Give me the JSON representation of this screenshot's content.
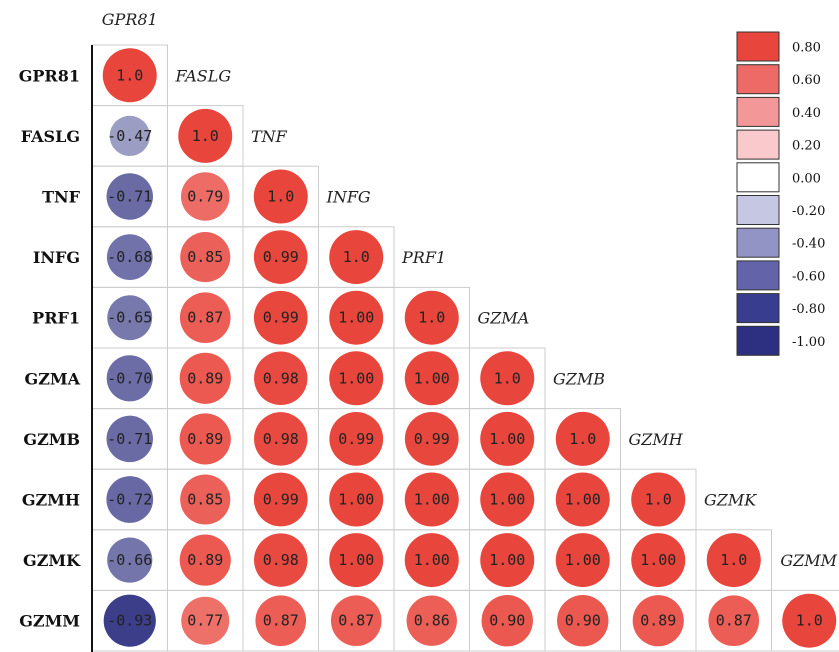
{
  "chart_data": {
    "type": "heatmap",
    "variables": [
      "GPR81",
      "FASLG",
      "TNF",
      "INFG",
      "PRF1",
      "GZMA",
      "GZMB",
      "GZMH",
      "GZMK",
      "GZMM"
    ],
    "matrix_lower": [
      [
        "1.0"
      ],
      [
        "-0.47",
        "1.0"
      ],
      [
        "-0.71",
        "0.79",
        "1.0"
      ],
      [
        "-0.68",
        "0.85",
        "0.99",
        "1.0"
      ],
      [
        "-0.65",
        "0.87",
        "0.99",
        "1.00",
        "1.0"
      ],
      [
        "-0.70",
        "0.89",
        "0.98",
        "1.00",
        "1.00",
        "1.0"
      ],
      [
        "-0.71",
        "0.89",
        "0.98",
        "0.99",
        "0.99",
        "1.00",
        "1.0"
      ],
      [
        "-0.72",
        "0.85",
        "0.99",
        "1.00",
        "1.00",
        "1.00",
        "1.00",
        "1.0"
      ],
      [
        "-0.66",
        "0.89",
        "0.98",
        "1.00",
        "1.00",
        "1.00",
        "1.00",
        "1.00",
        "1.0"
      ],
      [
        "-0.93",
        "0.77",
        "0.87",
        "0.87",
        "0.86",
        "0.90",
        "0.90",
        "0.89",
        "0.87",
        "1.0"
      ]
    ],
    "legend": {
      "placement": "top-right",
      "items": [
        {
          "label": "0.80",
          "color": "#e8453c"
        },
        {
          "label": "0.60",
          "color": "#ee6a66"
        },
        {
          "label": "0.40",
          "color": "#f49799"
        },
        {
          "label": "0.20",
          "color": "#f9c9cc"
        },
        {
          "label": "0.00",
          "color": "#ffffff"
        },
        {
          "label": "-0.20",
          "color": "#c6c7e2"
        },
        {
          "label": "-0.40",
          "color": "#9394c6"
        },
        {
          "label": "-0.60",
          "color": "#6263a8"
        },
        {
          "label": "-0.80",
          "color": "#383d8f"
        },
        {
          "label": "-1.00",
          "color": "#2d2f80"
        }
      ]
    },
    "colors": {
      "positive_full": "#e8453c",
      "negative_full": "#2d2f80",
      "grid": "#cccccc",
      "axis": "#111111"
    }
  }
}
